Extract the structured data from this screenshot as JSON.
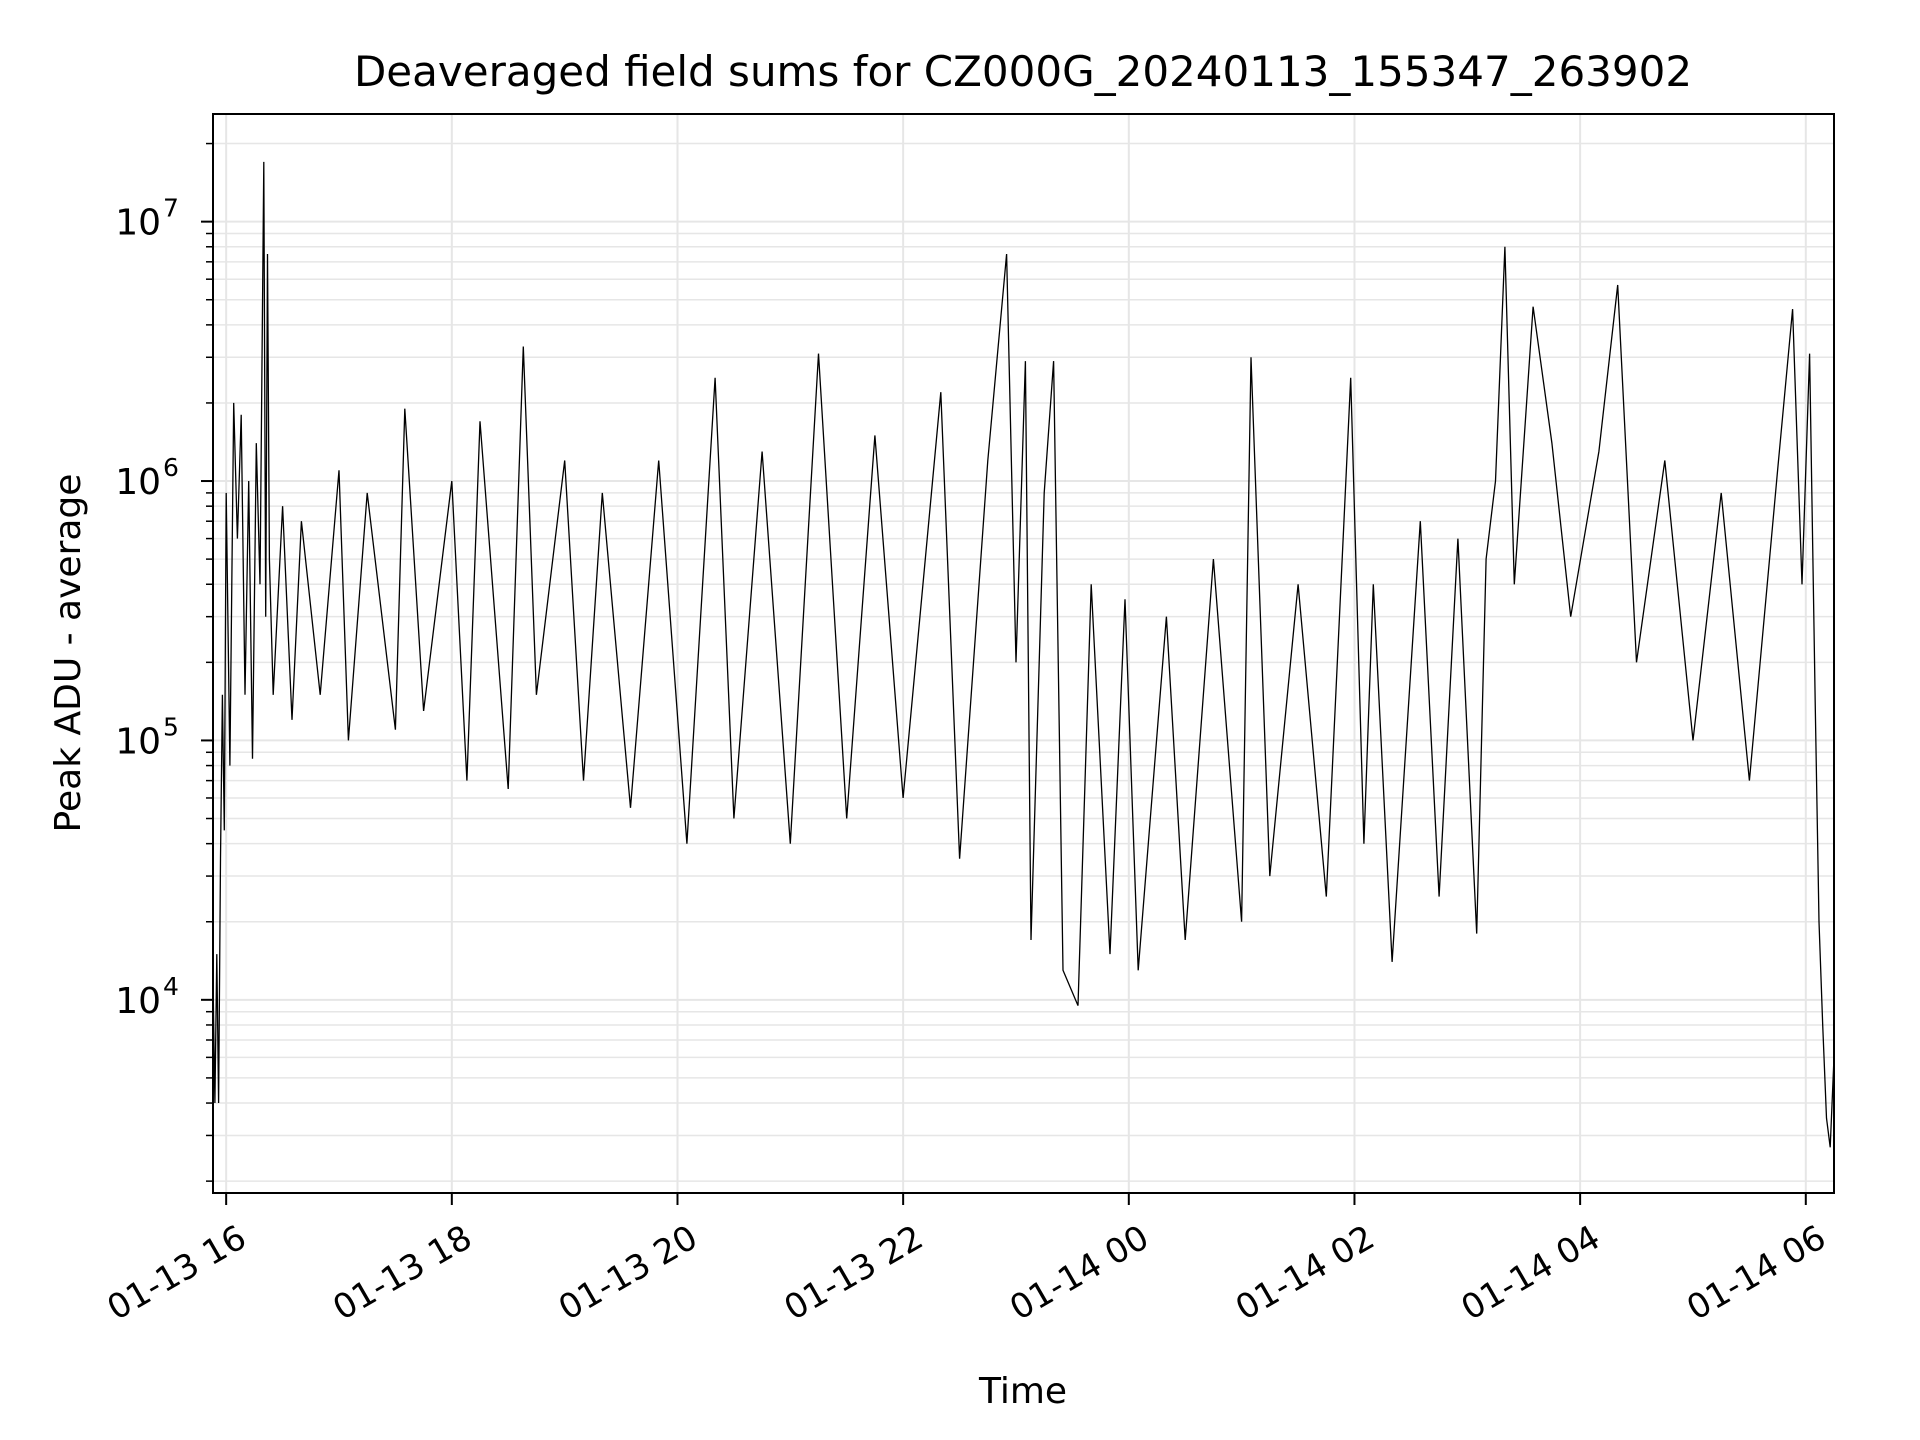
{
  "chart_data": {
    "type": "line",
    "title": "Deaveraged field sums for CZ000G_20240113_155347_263902",
    "xlabel": "Time",
    "ylabel": "Peak ADU - average",
    "yscale": "log",
    "ylim": [
      1800,
      26000000
    ],
    "xlim": [
      "2024-01-13 15:53",
      "2024-01-14 06:15"
    ],
    "grid": "on (major and minor)",
    "line_color": "#000000",
    "grid_color": "#e6e6e6",
    "x_ticks": [
      {
        "t": "2024-01-13 16:00",
        "label": "01-13 16"
      },
      {
        "t": "2024-01-13 18:00",
        "label": "01-13 18"
      },
      {
        "t": "2024-01-13 20:00",
        "label": "01-13 20"
      },
      {
        "t": "2024-01-13 22:00",
        "label": "01-13 22"
      },
      {
        "t": "2024-01-14 00:00",
        "label": "01-14 00"
      },
      {
        "t": "2024-01-14 02:00",
        "label": "01-14 02"
      },
      {
        "t": "2024-01-14 04:00",
        "label": "01-14 04"
      },
      {
        "t": "2024-01-14 06:00",
        "label": "01-14 06"
      }
    ],
    "y_ticks": [
      {
        "value": 10000,
        "base": "10",
        "exp": "4"
      },
      {
        "value": 100000,
        "base": "10",
        "exp": "5"
      },
      {
        "value": 1000000,
        "base": "10",
        "exp": "6"
      },
      {
        "value": 10000000,
        "base": "10",
        "exp": "7"
      }
    ],
    "series": [
      {
        "values": [
          [
            "2024-01-13 15:53",
            12000
          ],
          [
            "2024-01-13 15:54",
            4000
          ],
          [
            "2024-01-13 15:55",
            15000
          ],
          [
            "2024-01-13 15:56",
            4000
          ],
          [
            "2024-01-13 15:57",
            35000
          ],
          [
            "2024-01-13 15:58",
            150000
          ],
          [
            "2024-01-13 15:59",
            45000
          ],
          [
            "2024-01-13 16:00",
            900000
          ],
          [
            "2024-01-13 16:02",
            80000
          ],
          [
            "2024-01-13 16:04",
            2000000
          ],
          [
            "2024-01-13 16:06",
            600000
          ],
          [
            "2024-01-13 16:08",
            1800000
          ],
          [
            "2024-01-13 16:10",
            150000
          ],
          [
            "2024-01-13 16:12",
            1000000
          ],
          [
            "2024-01-13 16:14",
            85000
          ],
          [
            "2024-01-13 16:16",
            1400000
          ],
          [
            "2024-01-13 16:18",
            400000
          ],
          [
            "2024-01-13 16:20",
            17000000
          ],
          [
            "2024-01-13 16:21",
            300000
          ],
          [
            "2024-01-13 16:22",
            7500000
          ],
          [
            "2024-01-13 16:23",
            500000
          ],
          [
            "2024-01-13 16:25",
            150000
          ],
          [
            "2024-01-13 16:30",
            800000
          ],
          [
            "2024-01-13 16:35",
            120000
          ],
          [
            "2024-01-13 16:40",
            700000
          ],
          [
            "2024-01-13 16:50",
            150000
          ],
          [
            "2024-01-13 17:00",
            1100000
          ],
          [
            "2024-01-13 17:05",
            100000
          ],
          [
            "2024-01-13 17:15",
            900000
          ],
          [
            "2024-01-13 17:30",
            110000
          ],
          [
            "2024-01-13 17:35",
            1900000
          ],
          [
            "2024-01-13 17:45",
            130000
          ],
          [
            "2024-01-13 18:00",
            1000000
          ],
          [
            "2024-01-13 18:08",
            70000
          ],
          [
            "2024-01-13 18:15",
            1700000
          ],
          [
            "2024-01-13 18:30",
            65000
          ],
          [
            "2024-01-13 18:38",
            3300000
          ],
          [
            "2024-01-13 18:45",
            150000
          ],
          [
            "2024-01-13 19:00",
            1200000
          ],
          [
            "2024-01-13 19:10",
            70000
          ],
          [
            "2024-01-13 19:20",
            900000
          ],
          [
            "2024-01-13 19:35",
            55000
          ],
          [
            "2024-01-13 19:50",
            1200000
          ],
          [
            "2024-01-13 20:05",
            40000
          ],
          [
            "2024-01-13 20:20",
            2500000
          ],
          [
            "2024-01-13 20:30",
            50000
          ],
          [
            "2024-01-13 20:45",
            1300000
          ],
          [
            "2024-01-13 21:00",
            40000
          ],
          [
            "2024-01-13 21:15",
            3100000
          ],
          [
            "2024-01-13 21:30",
            50000
          ],
          [
            "2024-01-13 21:45",
            1500000
          ],
          [
            "2024-01-13 22:00",
            60000
          ],
          [
            "2024-01-13 22:20",
            2200000
          ],
          [
            "2024-01-13 22:30",
            35000
          ],
          [
            "2024-01-13 22:45",
            1200000
          ],
          [
            "2024-01-13 22:55",
            7500000
          ],
          [
            "2024-01-13 23:00",
            200000
          ],
          [
            "2024-01-13 23:05",
            2900000
          ],
          [
            "2024-01-13 23:08",
            17000
          ],
          [
            "2024-01-13 23:15",
            900000
          ],
          [
            "2024-01-13 23:20",
            2900000
          ],
          [
            "2024-01-13 23:25",
            13000
          ],
          [
            "2024-01-13 23:33",
            9500
          ],
          [
            "2024-01-13 23:40",
            400000
          ],
          [
            "2024-01-13 23:50",
            15000
          ],
          [
            "2024-01-13 23:58",
            350000
          ],
          [
            "2024-01-14 00:05",
            13000
          ],
          [
            "2024-01-14 00:20",
            300000
          ],
          [
            "2024-01-14 00:30",
            17000
          ],
          [
            "2024-01-14 00:45",
            500000
          ],
          [
            "2024-01-14 01:00",
            20000
          ],
          [
            "2024-01-14 01:05",
            3000000
          ],
          [
            "2024-01-14 01:15",
            30000
          ],
          [
            "2024-01-14 01:30",
            400000
          ],
          [
            "2024-01-14 01:45",
            25000
          ],
          [
            "2024-01-14 01:58",
            2500000
          ],
          [
            "2024-01-14 02:05",
            40000
          ],
          [
            "2024-01-14 02:10",
            400000
          ],
          [
            "2024-01-14 02:20",
            14000
          ],
          [
            "2024-01-14 02:35",
            700000
          ],
          [
            "2024-01-14 02:45",
            25000
          ],
          [
            "2024-01-14 02:55",
            600000
          ],
          [
            "2024-01-14 03:05",
            18000
          ],
          [
            "2024-01-14 03:10",
            500000
          ],
          [
            "2024-01-14 03:15",
            1000000
          ],
          [
            "2024-01-14 03:20",
            8000000
          ],
          [
            "2024-01-14 03:25",
            400000
          ],
          [
            "2024-01-14 03:35",
            4700000
          ],
          [
            "2024-01-14 03:45",
            1400000
          ],
          [
            "2024-01-14 03:55",
            300000
          ],
          [
            "2024-01-14 04:10",
            1300000
          ],
          [
            "2024-01-14 04:20",
            5700000
          ],
          [
            "2024-01-14 04:30",
            200000
          ],
          [
            "2024-01-14 04:45",
            1200000
          ],
          [
            "2024-01-14 05:00",
            100000
          ],
          [
            "2024-01-14 05:15",
            900000
          ],
          [
            "2024-01-14 05:30",
            70000
          ],
          [
            "2024-01-14 05:45",
            1100000
          ],
          [
            "2024-01-14 05:53",
            4600000
          ],
          [
            "2024-01-14 05:58",
            400000
          ],
          [
            "2024-01-14 06:02",
            3100000
          ],
          [
            "2024-01-14 06:05",
            140000
          ],
          [
            "2024-01-14 06:07",
            20000
          ],
          [
            "2024-01-14 06:09",
            8000
          ],
          [
            "2024-01-14 06:11",
            3500
          ],
          [
            "2024-01-14 06:13",
            2700
          ],
          [
            "2024-01-14 06:15",
            6000
          ]
        ]
      }
    ]
  }
}
